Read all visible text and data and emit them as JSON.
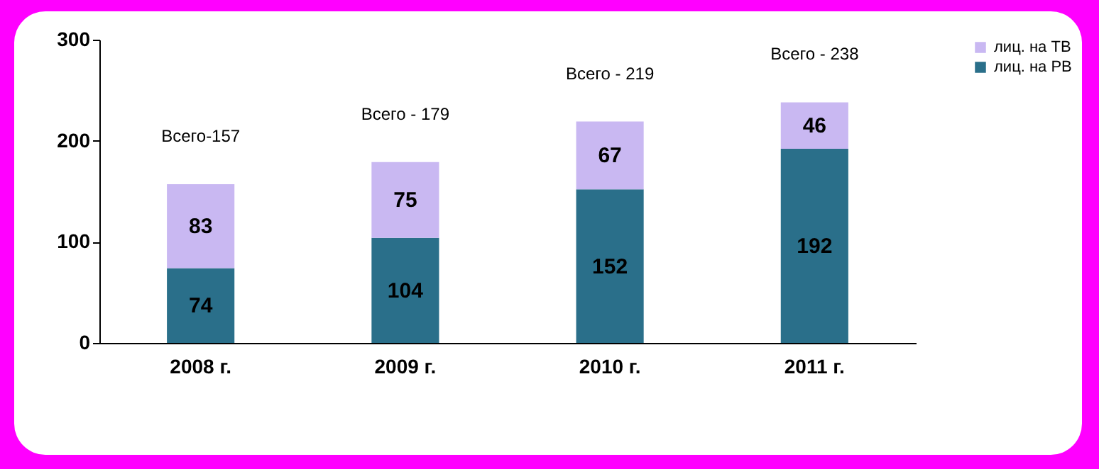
{
  "chart_data": {
    "type": "bar",
    "stacked": true,
    "categories": [
      "2008 г.",
      "2009 г.",
      "2010 г.",
      "2011 г."
    ],
    "series": [
      {
        "name": "лиц. на РВ",
        "color": "#2a6f8a",
        "values": [
          74,
          104,
          152,
          192
        ]
      },
      {
        "name": "лиц. на ТВ",
        "color": "#c9b8f2",
        "values": [
          83,
          75,
          67,
          46
        ]
      }
    ],
    "ylim": [
      0,
      300
    ],
    "yticks": [
      0,
      100,
      200,
      300
    ],
    "grid": false,
    "legend": "right",
    "data_labels": true,
    "annotations": [
      "Всего-157",
      "Всего - 179",
      "Всего - 219",
      "Всего - 238"
    ]
  }
}
